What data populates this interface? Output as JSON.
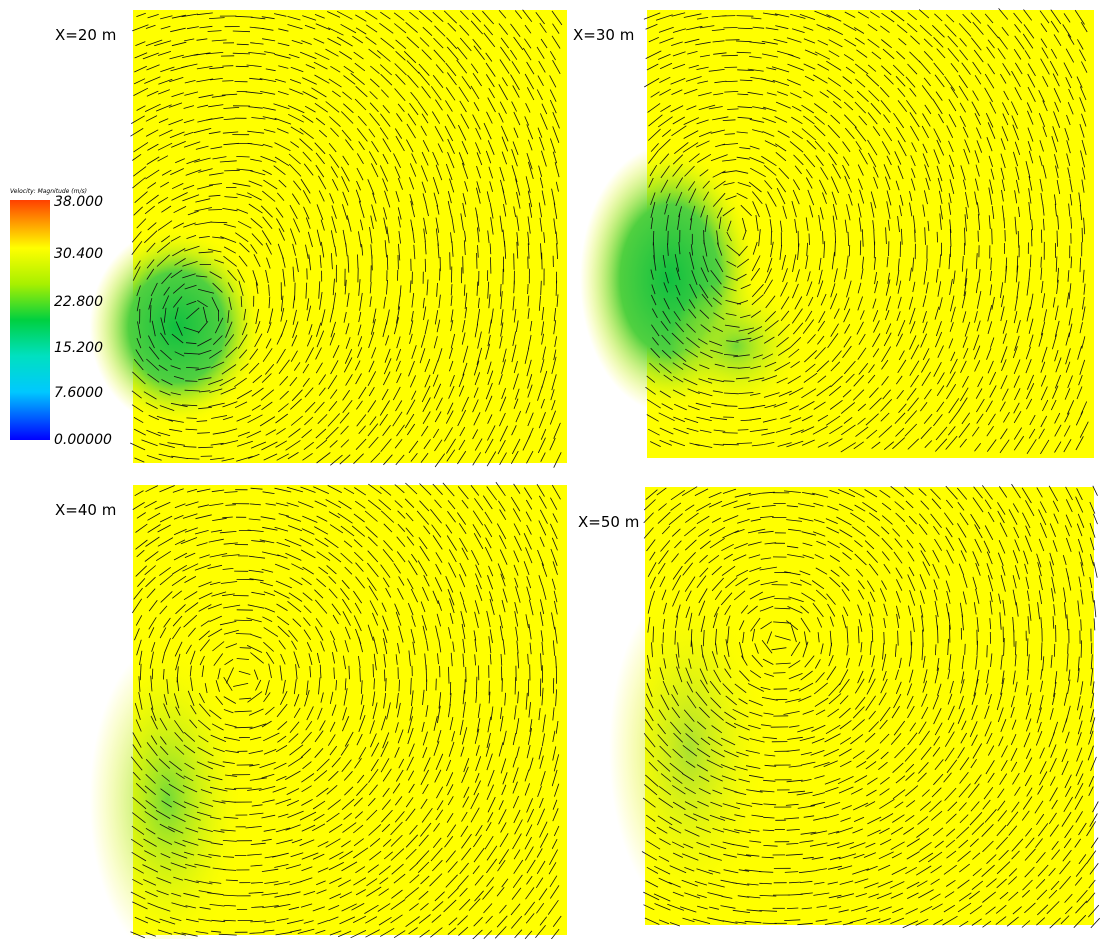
{
  "panels": [
    {
      "label": "X=20 m"
    },
    {
      "label": "X=30 m"
    },
    {
      "label": "X=40 m"
    },
    {
      "label": "X=50 m"
    }
  ],
  "colorbar": {
    "title": "Velocity: Magnitude (m/s)",
    "ticks": [
      "38.000",
      "30.400",
      "22.800",
      "15.200",
      "7.6000",
      "0.00000"
    ]
  }
}
